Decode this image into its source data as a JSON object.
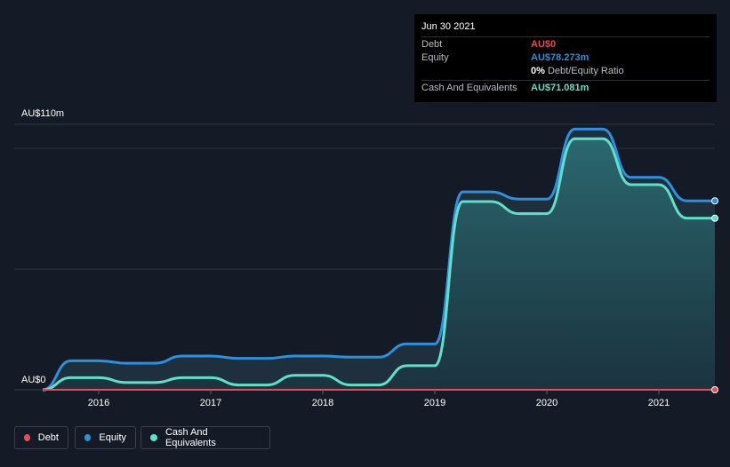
{
  "chart_data": {
    "type": "area",
    "y_axis": {
      "max_label": "AU$110m",
      "min_label": "AU$0",
      "ylim": [
        0,
        110
      ]
    },
    "x_ticks": [
      "2016",
      "2017",
      "2018",
      "2019",
      "2020",
      "2021"
    ],
    "xlim": [
      2015.5,
      2021.5
    ],
    "series": [
      {
        "name": "Debt",
        "color": "#e74c5b",
        "points": [
          [
            2015.5,
            0
          ],
          [
            2021.5,
            0
          ]
        ]
      },
      {
        "name": "Equity",
        "color": "#2f8fdc",
        "points": [
          [
            2015.5,
            0
          ],
          [
            2015.75,
            12
          ],
          [
            2016.0,
            12
          ],
          [
            2016.25,
            11
          ],
          [
            2016.5,
            11
          ],
          [
            2016.75,
            14
          ],
          [
            2017.0,
            14
          ],
          [
            2017.25,
            13
          ],
          [
            2017.5,
            13
          ],
          [
            2017.75,
            14
          ],
          [
            2018.0,
            14
          ],
          [
            2018.25,
            13.5
          ],
          [
            2018.5,
            13.5
          ],
          [
            2018.75,
            19
          ],
          [
            2019.0,
            19
          ],
          [
            2019.25,
            82
          ],
          [
            2019.5,
            82
          ],
          [
            2019.75,
            79
          ],
          [
            2020.0,
            79
          ],
          [
            2020.25,
            108
          ],
          [
            2020.5,
            108
          ],
          [
            2020.75,
            88
          ],
          [
            2021.0,
            88
          ],
          [
            2021.25,
            78.273
          ],
          [
            2021.5,
            78.273
          ]
        ]
      },
      {
        "name": "Cash And Equivalents",
        "color": "#5fe0c8",
        "points": [
          [
            2015.5,
            0
          ],
          [
            2015.75,
            5
          ],
          [
            2016.0,
            5
          ],
          [
            2016.25,
            3
          ],
          [
            2016.5,
            3
          ],
          [
            2016.75,
            5
          ],
          [
            2017.0,
            5
          ],
          [
            2017.25,
            2
          ],
          [
            2017.5,
            2
          ],
          [
            2017.75,
            6
          ],
          [
            2018.0,
            6
          ],
          [
            2018.25,
            2
          ],
          [
            2018.5,
            2
          ],
          [
            2018.75,
            10
          ],
          [
            2019.0,
            10
          ],
          [
            2019.25,
            78
          ],
          [
            2019.5,
            78
          ],
          [
            2019.75,
            73
          ],
          [
            2020.0,
            73
          ],
          [
            2020.25,
            104
          ],
          [
            2020.5,
            104
          ],
          [
            2020.75,
            85
          ],
          [
            2021.0,
            85
          ],
          [
            2021.25,
            71.081
          ],
          [
            2021.5,
            71.081
          ]
        ]
      }
    ],
    "tooltip": {
      "date": "Jun 30 2021",
      "rows": [
        {
          "label": "Debt",
          "value": "AU$0",
          "color": "#e74c5b"
        },
        {
          "label": "Equity",
          "value": "AU$78.273m",
          "color": "#2f8fdc"
        },
        {
          "label": "Cash And Equivalents",
          "value": "AU$71.081m",
          "color": "#5fe0c8"
        }
      ],
      "ratio_value": "0%",
      "ratio_label": "Debt/Equity Ratio"
    },
    "legend": [
      {
        "label": "Debt",
        "color": "#e74c5b"
      },
      {
        "label": "Equity",
        "color": "#2f8fdc"
      },
      {
        "label": "Cash And Equivalents",
        "color": "#5fe0c8"
      }
    ]
  }
}
